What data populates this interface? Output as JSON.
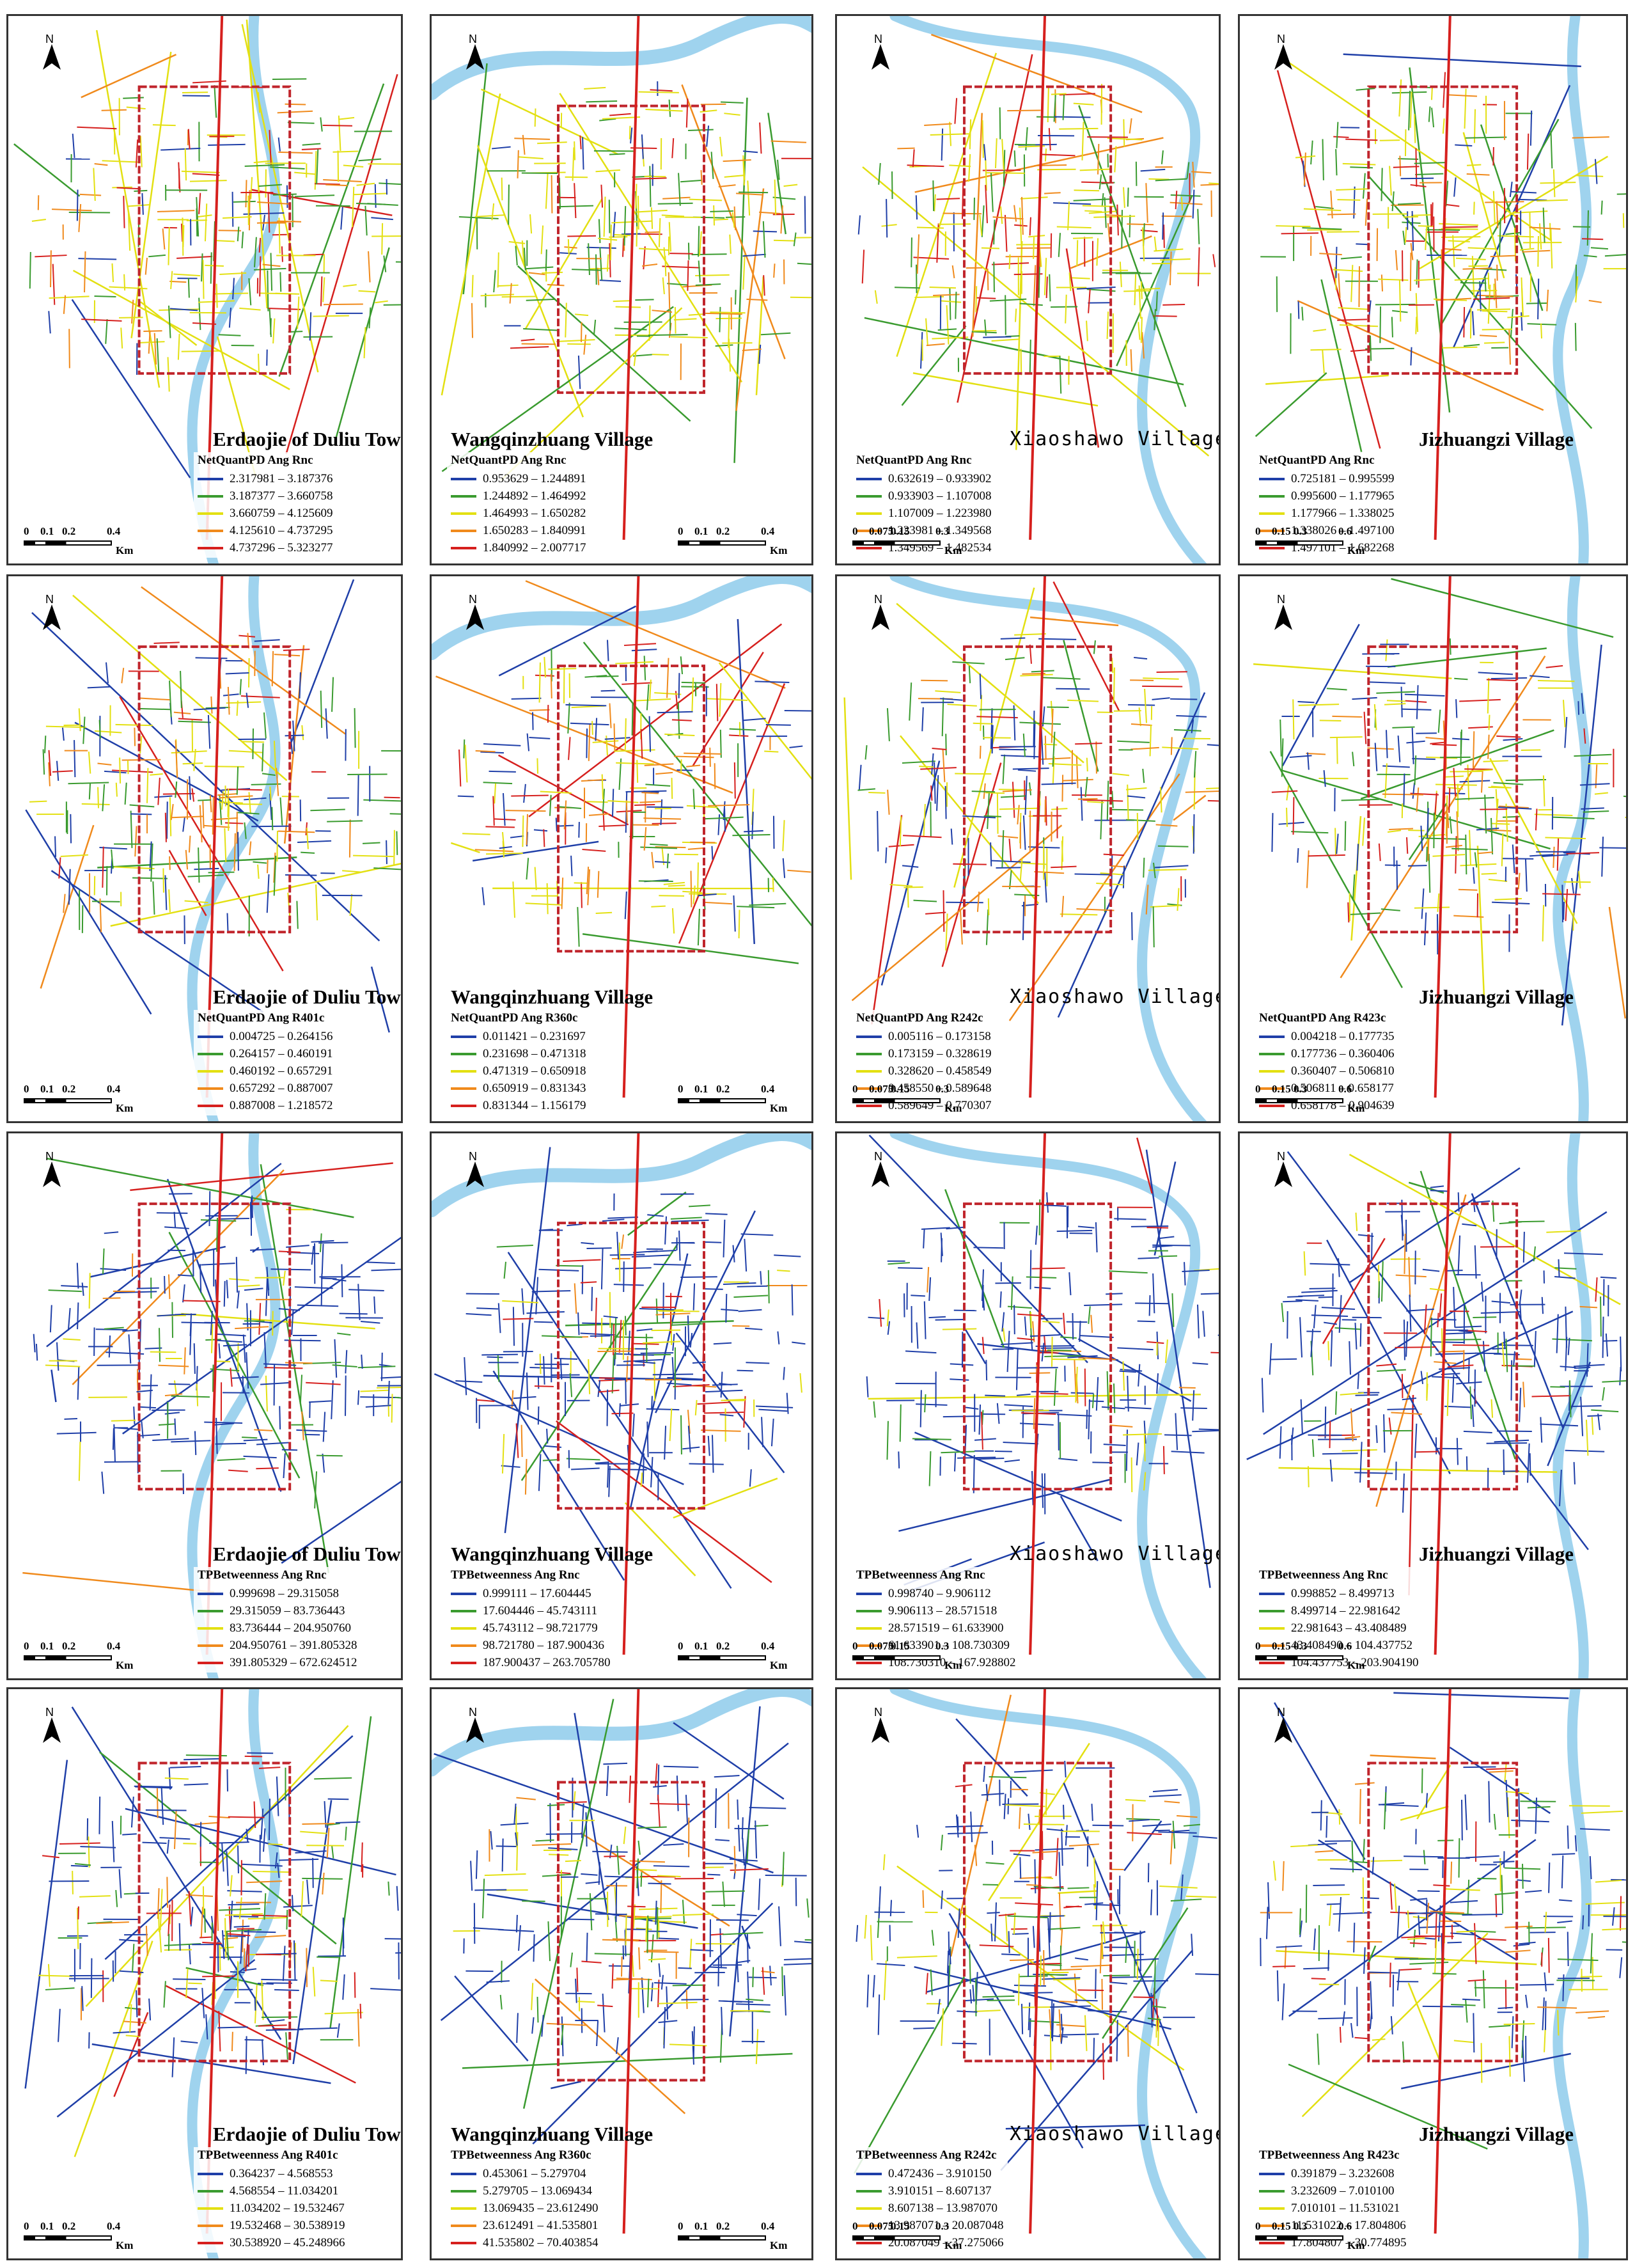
{
  "colors": {
    "class1": "#1f3fa8",
    "class2": "#3a9b2f",
    "class3": "#e3e012",
    "class4": "#f08a1c",
    "class5": "#d6201e",
    "water": "#9fd3ee",
    "boundary": "#c0252c"
  },
  "north_label": "N",
  "unit_label": "Km",
  "scales": {
    "erdaojie": [
      "0",
      "0.1",
      "0.2",
      "0.4"
    ],
    "wangqinzhuang": [
      "0",
      "0.1",
      "0.2",
      "0.4"
    ],
    "xiaoshawo": [
      "0",
      "0.075",
      "0.15",
      "0.3"
    ],
    "jizhuangzi": [
      "0",
      "0.15",
      "0.3",
      "0.6"
    ]
  },
  "rows": [
    {
      "panels": [
        {
          "title": "Erdaojie of Duliu Town",
          "legend_title": "NetQuantPD Ang Rnc",
          "legend": [
            "2.317981 – 3.187376",
            "3.187377 – 3.660758",
            "3.660759 – 4.125609",
            "4.125610 – 4.737295",
            "4.737296 – 5.323277"
          ]
        },
        {
          "title": "Wangqinzhuang Village",
          "legend_title": "NetQuantPD Ang Rnc",
          "legend": [
            "0.953629 – 1.244891",
            "1.244892 – 1.464992",
            "1.464993 – 1.650282",
            "1.650283 – 1.840991",
            "1.840992 – 2.007717"
          ]
        },
        {
          "title": "Xiaoshawo Village",
          "legend_title": "NetQuantPD Ang Rnc",
          "legend": [
            "0.632619 – 0.933902",
            "0.933903 – 1.107008",
            "1.107009 – 1.223980",
            "1.223981 – 1.349568",
            "1.349569 – 1.482534"
          ]
        },
        {
          "title": "Jizhuangzi Village",
          "legend_title": "NetQuantPD Ang Rnc",
          "legend": [
            "0.725181 – 0.995599",
            "0.995600 – 1.177965",
            "1.177966 – 1.338025",
            "1.338026 – 1.497100",
            "1.497101 – 1.682268"
          ]
        }
      ]
    },
    {
      "panels": [
        {
          "title": "Erdaojie of Duliu Town",
          "legend_title": "NetQuantPD Ang R401c",
          "legend": [
            "0.004725 – 0.264156",
            "0.264157 – 0.460191",
            "0.460192 – 0.657291",
            "0.657292 – 0.887007",
            "0.887008 – 1.218572"
          ]
        },
        {
          "title": "Wangqinzhuang Village",
          "legend_title": "NetQuantPD Ang R360c",
          "legend": [
            "0.011421 – 0.231697",
            "0.231698 – 0.471318",
            "0.471319 – 0.650918",
            "0.650919 – 0.831343",
            "0.831344 – 1.156179"
          ]
        },
        {
          "title": "Xiaoshawo Village",
          "legend_title": "NetQuantPD Ang R242c",
          "legend": [
            "0.005116 – 0.173158",
            "0.173159 – 0.328619",
            "0.328620 – 0.458549",
            "0.458550 – 0.589648",
            "0.589649 – 0.770307"
          ]
        },
        {
          "title": "Jizhuangzi Village",
          "legend_title": "NetQuantPD Ang R423c",
          "legend": [
            "0.004218 – 0.177735",
            "0.177736 – 0.360406",
            "0.360407 – 0.506810",
            "0.506811 – 0.658177",
            "0.658178 – 0.904639"
          ]
        }
      ]
    },
    {
      "panels": [
        {
          "title": "Erdaojie of Duliu Town",
          "legend_title": "TPBetweenness Ang Rnc",
          "legend": [
            "0.999698 – 29.315058",
            "29.315059 – 83.736443",
            "83.736444 – 204.950760",
            "204.950761 – 391.805328",
            "391.805329 – 672.624512"
          ]
        },
        {
          "title": "Wangqinzhuang Village",
          "legend_title": "TPBetweenness Ang Rnc",
          "legend": [
            "0.999111 – 17.604445",
            "17.604446 – 45.743111",
            "45.743112 – 98.721779",
            "98.721780 – 187.900436",
            "187.900437 – 263.705780"
          ]
        },
        {
          "title": "Xiaoshawo Village",
          "legend_title": "TPBetweenness Ang Rnc",
          "legend": [
            "0.998740 – 9.906112",
            "9.906113 – 28.571518",
            "28.571519 – 61.633900",
            "61.633901 – 108.730309",
            "108.730310 – 167.928802"
          ]
        },
        {
          "title": "Jizhuangzi Village",
          "legend_title": "TPBetweenness Ang Rnc",
          "legend": [
            "0.998852 – 8.499713",
            "8.499714 – 22.981642",
            "22.981643 – 43.408489",
            "43.408490 – 104.437752",
            "104.437753 – 203.904190"
          ]
        }
      ]
    },
    {
      "panels": [
        {
          "title": "Erdaojie of Duliu Town",
          "legend_title": "TPBetweenness Ang R401c",
          "legend": [
            "0.364237 – 4.568553",
            "4.568554 – 11.034201",
            "11.034202 – 19.532467",
            "19.532468 – 30.538919",
            "30.538920 – 45.248966"
          ]
        },
        {
          "title": "Wangqinzhuang Village",
          "legend_title": "TPBetweenness Ang R360c",
          "legend": [
            "0.453061 – 5.279704",
            "5.279705 – 13.069434",
            "13.069435 – 23.612490",
            "23.612491 – 41.535801",
            "41.535802 – 70.403854"
          ]
        },
        {
          "title": "Xiaoshawo Village",
          "legend_title": "TPBetweenness Ang R242c",
          "legend": [
            "0.472436 – 3.910150",
            "3.910151 – 8.607137",
            "8.607138 – 13.987070",
            "13.987071 – 20.087048",
            "20.087049 – 37.275066"
          ]
        },
        {
          "title": "Jizhuangzi Village",
          "legend_title": "TPBetweenness Ang R423c",
          "legend": [
            "0.391879 – 3.232608",
            "3.232609 – 7.010100",
            "7.010101 – 11.531021",
            "11.531022 – 17.804806",
            "17.804807 – 30.774895"
          ]
        }
      ]
    }
  ]
}
